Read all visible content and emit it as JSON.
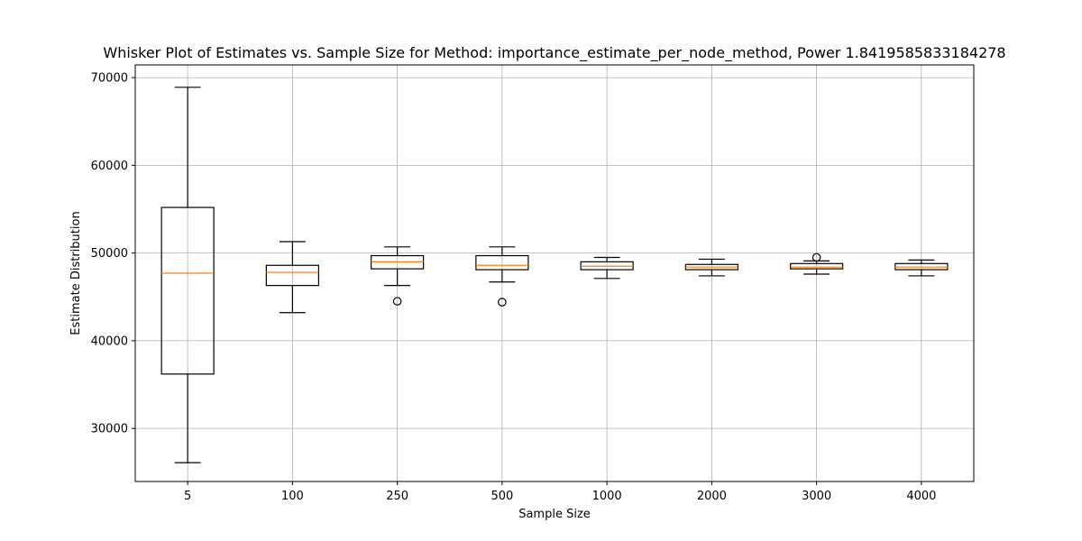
{
  "chart_data": {
    "type": "boxplot",
    "title": "Whisker Plot of Estimates vs. Sample Size for Method: importance_estimate_per_node_method, Power 1.8419585833184278",
    "xlabel": "Sample Size",
    "ylabel": "Estimate Distribution",
    "categories": [
      "5",
      "100",
      "250",
      "500",
      "1000",
      "2000",
      "3000",
      "4000"
    ],
    "ylim": [
      23950,
      71450
    ],
    "yticks": [
      30000,
      40000,
      50000,
      60000,
      70000
    ],
    "grid": true,
    "boxes": [
      {
        "whislo": 26100,
        "q1": 36200,
        "med": 47700,
        "q3": 55200,
        "whishi": 68900,
        "fliers": []
      },
      {
        "whislo": 43200,
        "q1": 46300,
        "med": 47800,
        "q3": 48600,
        "whishi": 51300,
        "fliers": []
      },
      {
        "whislo": 46300,
        "q1": 48200,
        "med": 49000,
        "q3": 49700,
        "whishi": 50700,
        "fliers": [
          44500
        ]
      },
      {
        "whislo": 46700,
        "q1": 48100,
        "med": 48600,
        "q3": 49700,
        "whishi": 50700,
        "fliers": [
          44400
        ]
      },
      {
        "whislo": 47100,
        "q1": 48100,
        "med": 48500,
        "q3": 49000,
        "whishi": 49500,
        "fliers": []
      },
      {
        "whislo": 47400,
        "q1": 48100,
        "med": 48400,
        "q3": 48700,
        "whishi": 49300,
        "fliers": []
      },
      {
        "whislo": 47600,
        "q1": 48200,
        "med": 48400,
        "q3": 48800,
        "whishi": 49100,
        "fliers": [
          49500
        ]
      },
      {
        "whislo": 47400,
        "q1": 48100,
        "med": 48400,
        "q3": 48800,
        "whishi": 49200,
        "fliers": []
      }
    ],
    "colors": {
      "box": "#000000",
      "median": "#ff7f0e",
      "grid": "#b0b0b0"
    }
  }
}
